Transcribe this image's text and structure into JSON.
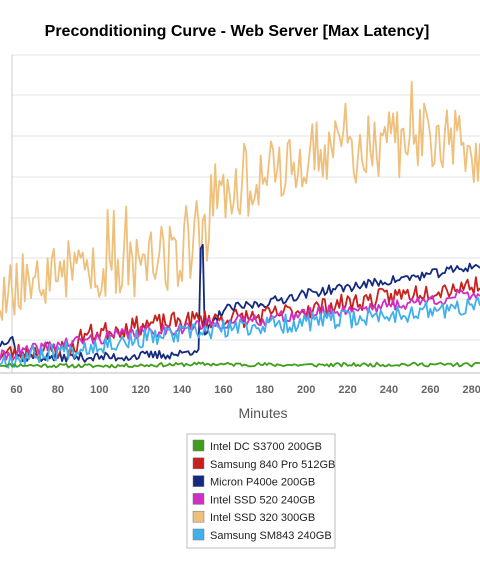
{
  "chart_data": {
    "type": "line",
    "title": "Preconditioning Curve - Web Server [Max Latency]",
    "xlabel": "Minutes",
    "ylabel": "",
    "xlim": [
      52,
      284
    ],
    "ylim": [
      0,
      100
    ],
    "x_ticks": [
      60,
      80,
      100,
      120,
      140,
      160,
      180,
      200,
      220,
      240,
      260,
      280
    ],
    "x_tick_labels": [
      "60",
      "80",
      "100",
      "120",
      "140",
      "160",
      "180",
      "200",
      "220",
      "240",
      "260",
      "280"
    ],
    "grid": true,
    "legend_position": "bottom-center",
    "series": [
      {
        "name": "Intel DC S3700 200GB",
        "color": "#3f9e1b",
        "key": [
          [
            52,
            2.5
          ],
          [
            100,
            2.2
          ],
          [
            150,
            2.8
          ],
          [
            200,
            2.5
          ],
          [
            250,
            2.7
          ],
          [
            284,
            2.6
          ]
        ],
        "base": 2.4,
        "noise": 1.2,
        "seed": 11
      },
      {
        "name": "Samsung 840 Pro 512GB",
        "color": "#c8201c",
        "key": [
          [
            52,
            6
          ],
          [
            88,
            8
          ],
          [
            92,
            12
          ],
          [
            120,
            15
          ],
          [
            150,
            17
          ],
          [
            175,
            17.5
          ],
          [
            200,
            20
          ],
          [
            230,
            23
          ],
          [
            260,
            26
          ],
          [
            284,
            28
          ]
        ],
        "base": 0,
        "noise": 6,
        "seed": 23
      },
      {
        "name": "Micron P400e 200GB",
        "color": "#142a7e",
        "key": [
          [
            52,
            9
          ],
          [
            58,
            12
          ],
          [
            60,
            5
          ],
          [
            108,
            5
          ],
          [
            140,
            6
          ],
          [
            148,
            8
          ],
          [
            149,
            38
          ],
          [
            150,
            39
          ],
          [
            151,
            12
          ],
          [
            160,
            20
          ],
          [
            180,
            22
          ],
          [
            200,
            25
          ],
          [
            230,
            28
          ],
          [
            260,
            31
          ],
          [
            284,
            34
          ]
        ],
        "base": 0,
        "noise": 3,
        "seed": 37
      },
      {
        "name": "Intel SSD 520 240GB",
        "color": "#cf2fc7",
        "key": [
          [
            52,
            5
          ],
          [
            80,
            9
          ],
          [
            110,
            12
          ],
          [
            150,
            15
          ],
          [
            180,
            17
          ],
          [
            220,
            20
          ],
          [
            250,
            22
          ],
          [
            284,
            25
          ]
        ],
        "base": 0,
        "noise": 4,
        "seed": 41
      },
      {
        "name": "Intel SSD 320 300GB",
        "color": "#efc07c",
        "key": [
          [
            52,
            25
          ],
          [
            70,
            30
          ],
          [
            100,
            33
          ],
          [
            130,
            36
          ],
          [
            150,
            40
          ],
          [
            155,
            55
          ],
          [
            160,
            58
          ],
          [
            185,
            65
          ],
          [
            210,
            70
          ],
          [
            240,
            71
          ],
          [
            265,
            75
          ],
          [
            284,
            67
          ]
        ],
        "base": 0,
        "noise": 22,
        "seed": 53
      },
      {
        "name": "Samsung SM843 240GB",
        "color": "#3fb0ea",
        "key": [
          [
            52,
            4
          ],
          [
            80,
            7
          ],
          [
            110,
            10
          ],
          [
            150,
            13
          ],
          [
            180,
            15
          ],
          [
            220,
            17
          ],
          [
            250,
            19
          ],
          [
            284,
            21
          ]
        ],
        "base": 0,
        "noise": 6,
        "seed": 67
      }
    ]
  }
}
